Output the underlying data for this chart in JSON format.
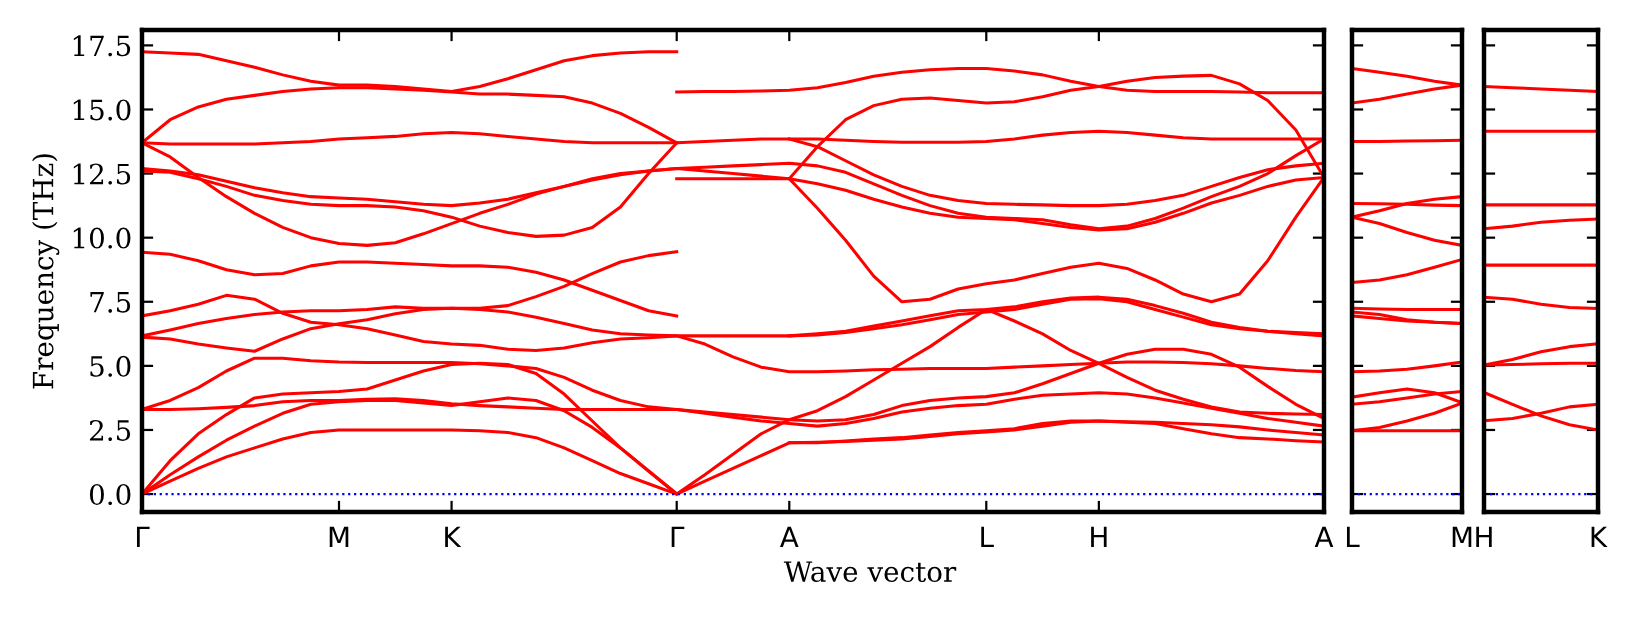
{
  "chart_data": [
    {
      "type": "line",
      "xlabel": "Wave vector",
      "ylabel": "Frequency (THz)",
      "ylim": [
        -0.7,
        18.1
      ],
      "categories": [
        "Γ",
        null,
        null,
        null,
        null,
        null,
        null,
        "M",
        null,
        null,
        null,
        "K",
        null,
        null,
        null,
        null,
        null,
        null,
        null,
        "Γ",
        null,
        null,
        null,
        "A",
        null,
        null,
        null,
        null,
        null,
        null,
        "L",
        null,
        null,
        null,
        "H",
        null,
        null,
        null,
        null,
        null,
        null,
        null,
        "A"
      ],
      "yticks": [
        {
          "value": 0,
          "label": "0.0"
        },
        2.5,
        {
          "value": 5,
          "label": "5.0"
        },
        7.5,
        {
          "value": 10,
          "label": "10.0"
        },
        12.5,
        {
          "value": 15,
          "label": "15.0"
        },
        17.5
      ],
      "ref_lines": [
        {
          "axis": "y",
          "value": 0,
          "color": "#0000ff",
          "line_style": "dotted"
        }
      ],
      "series": [
        {
          "color": "#ff0000",
          "values": [
            17.25,
            17.2,
            17.15,
            16.9,
            16.65,
            16.35,
            16.1,
            15.95,
            15.95,
            15.9,
            15.8,
            15.7,
            15.9,
            16.2,
            16.55,
            16.9,
            17.1,
            17.2,
            17.25,
            17.25,
            null,
            null,
            null,
            null,
            null,
            null,
            null,
            null,
            null,
            null,
            null,
            null,
            null,
            null,
            null,
            null,
            null,
            null,
            null,
            null,
            null,
            null,
            null
          ]
        },
        {
          "color": "#ff0000",
          "values": [
            13.7,
            14.6,
            15.1,
            15.4,
            15.55,
            15.7,
            15.8,
            15.85,
            15.85,
            15.8,
            15.75,
            15.68,
            15.6,
            15.6,
            15.55,
            15.5,
            15.25,
            14.85,
            14.3,
            13.7,
            13.75,
            13.8,
            13.85,
            13.85,
            13.85,
            13.8,
            13.75,
            13.72,
            13.72,
            13.72,
            13.75,
            13.85,
            14.0,
            14.1,
            14.15,
            14.1,
            14.0,
            13.9,
            13.85,
            13.85,
            13.85,
            13.85,
            13.85
          ]
        },
        {
          "color": "#ff0000",
          "values": [
            13.7,
            13.65,
            13.65,
            13.65,
            13.65,
            13.7,
            13.75,
            13.85,
            13.9,
            13.95,
            14.05,
            14.1,
            14.05,
            13.95,
            13.85,
            13.75,
            13.7,
            13.7,
            13.7,
            13.7,
            null,
            null,
            null,
            null,
            null,
            null,
            null,
            null,
            null,
            null,
            null,
            null,
            null,
            null,
            null,
            null,
            null,
            null,
            null,
            null,
            null,
            null,
            null
          ]
        },
        {
          "color": "#ff0000",
          "values": [
            13.7,
            13.15,
            12.35,
            11.6,
            10.95,
            10.4,
            10.0,
            9.77,
            9.7,
            9.8,
            10.15,
            10.55,
            10.95,
            11.3,
            11.7,
            12.0,
            12.3,
            12.5,
            12.6,
            12.7,
            12.6,
            12.5,
            12.4,
            12.3,
            11.15,
            9.9,
            8.5,
            7.5,
            7.6,
            8.0,
            8.2,
            8.35,
            8.6,
            8.85,
            9.0,
            8.8,
            8.35,
            7.8,
            7.5,
            7.8,
            9.1,
            10.8,
            12.35
          ]
        },
        {
          "color": "#ff0000",
          "values": [
            12.7,
            12.6,
            12.45,
            12.2,
            11.95,
            11.75,
            11.6,
            11.55,
            11.5,
            11.4,
            11.3,
            11.25,
            11.35,
            11.5,
            11.75,
            12.0,
            12.25,
            12.45,
            12.6,
            12.7,
            12.75,
            12.8,
            12.85,
            12.9,
            12.8,
            12.55,
            12.1,
            11.65,
            11.25,
            10.95,
            10.8,
            10.75,
            10.7,
            10.5,
            10.35,
            10.45,
            10.75,
            11.15,
            11.6,
            12.0,
            12.5,
            13.2,
            13.85
          ]
        },
        {
          "color": "#ff0000",
          "values": [
            12.6,
            12.55,
            12.3,
            12.0,
            11.65,
            11.45,
            11.3,
            11.25,
            11.25,
            11.2,
            11.05,
            10.8,
            10.45,
            10.2,
            10.05,
            10.1,
            10.4,
            11.2,
            12.5,
            13.7,
            null,
            null,
            null,
            null,
            null,
            null,
            null,
            null,
            null,
            null,
            null,
            null,
            null,
            null,
            null,
            null,
            null,
            null,
            null,
            null,
            null,
            null,
            null
          ]
        },
        {
          "color": "#ff0000",
          "values": [
            9.43,
            9.35,
            9.1,
            8.75,
            8.55,
            8.6,
            8.9,
            9.05,
            9.05,
            9.0,
            8.95,
            8.9,
            8.9,
            8.85,
            8.65,
            8.35,
            7.95,
            7.55,
            7.15,
            6.95,
            null,
            null,
            null,
            null,
            null,
            null,
            null,
            null,
            null,
            null,
            null,
            null,
            null,
            null,
            null,
            null,
            null,
            null,
            null,
            null,
            null,
            null,
            null
          ]
        },
        {
          "color": "#ff0000",
          "values": [
            6.95,
            7.15,
            7.4,
            7.75,
            7.6,
            7.05,
            6.7,
            6.6,
            6.45,
            6.2,
            5.95,
            5.85,
            5.8,
            5.65,
            5.6,
            5.7,
            5.9,
            6.05,
            6.1,
            6.17,
            6.17,
            6.17,
            6.17,
            6.17,
            6.25,
            6.35,
            6.55,
            6.75,
            6.95,
            7.15,
            7.2,
            7.3,
            7.5,
            7.65,
            7.68,
            7.6,
            7.35,
            7.05,
            6.7,
            6.5,
            6.35,
            6.25,
            6.17
          ]
        },
        {
          "color": "#ff0000",
          "values": [
            6.17,
            6.4,
            6.65,
            6.85,
            7.0,
            7.1,
            7.15,
            7.15,
            7.2,
            7.3,
            7.25,
            7.25,
            7.25,
            7.35,
            7.7,
            8.1,
            8.6,
            9.05,
            9.3,
            9.45,
            null,
            null,
            null,
            null,
            null,
            null,
            null,
            null,
            null,
            null,
            null,
            null,
            null,
            null,
            null,
            null,
            null,
            null,
            null,
            null,
            null,
            null,
            null
          ]
        },
        {
          "color": "#ff0000",
          "values": [
            6.12,
            6.05,
            5.85,
            5.7,
            5.57,
            6.05,
            6.45,
            6.64,
            6.8,
            7.03,
            7.2,
            7.25,
            7.2,
            7.1,
            6.9,
            6.65,
            6.4,
            6.25,
            6.2,
            6.17,
            5.85,
            5.35,
            4.95,
            4.77,
            4.77,
            4.8,
            4.85,
            4.87,
            4.9,
            4.9,
            4.9,
            4.95,
            5.0,
            5.05,
            5.1,
            5.15,
            5.15,
            5.13,
            5.08,
            5.0,
            4.9,
            4.82,
            4.77
          ]
        },
        {
          "color": "#ff0000",
          "values": [
            3.3,
            3.65,
            4.15,
            4.8,
            5.3,
            5.3,
            5.2,
            5.15,
            5.13,
            5.13,
            5.13,
            5.13,
            5.08,
            5.0,
            4.9,
            4.55,
            4.05,
            3.65,
            3.4,
            3.3,
            3.2,
            3.1,
            3.0,
            2.9,
            2.85,
            2.9,
            3.1,
            3.45,
            3.65,
            3.75,
            3.8,
            3.95,
            4.3,
            4.7,
            5.1,
            5.45,
            5.65,
            5.65,
            5.45,
            4.95,
            4.2,
            3.5,
            2.95
          ]
        },
        {
          "color": "#ff0000",
          "values": [
            3.3,
            3.3,
            3.33,
            3.38,
            3.45,
            3.6,
            3.65,
            3.65,
            3.7,
            3.72,
            3.65,
            3.52,
            3.45,
            3.4,
            3.35,
            3.3,
            3.3,
            3.3,
            3.3,
            3.3,
            3.15,
            3.0,
            2.85,
            2.75,
            2.65,
            2.75,
            2.95,
            3.2,
            3.35,
            3.45,
            3.5,
            3.7,
            3.85,
            3.9,
            3.95,
            3.9,
            3.75,
            3.55,
            3.35,
            3.15,
            2.95,
            2.8,
            2.65
          ]
        },
        {
          "color": "#ff0000",
          "values": [
            0,
            1.3,
            2.35,
            3.1,
            3.75,
            3.9,
            3.95,
            4.0,
            4.1,
            4.45,
            4.8,
            5.05,
            5.1,
            5.05,
            4.7,
            3.9,
            2.85,
            1.8,
            0.9,
            0,
            0.75,
            1.55,
            2.35,
            2.9,
            3.25,
            3.8,
            4.45,
            5.1,
            5.75,
            6.5,
            7.2,
            6.75,
            6.25,
            5.6,
            5.1,
            4.55,
            4.05,
            3.7,
            3.4,
            3.2,
            3.15,
            3.12,
            3.1
          ]
        },
        {
          "color": "#ff0000",
          "values": [
            0,
            0.75,
            1.45,
            2.1,
            2.65,
            3.15,
            3.5,
            3.6,
            3.65,
            3.65,
            3.55,
            3.45,
            3.6,
            3.75,
            3.65,
            3.25,
            2.6,
            1.8,
            0.9,
            0,
            0.5,
            1.0,
            1.5,
            2.0,
            2.0,
            2.07,
            2.15,
            2.2,
            2.3,
            2.4,
            2.47,
            2.55,
            2.75,
            2.85,
            2.85,
            2.8,
            2.75,
            2.55,
            2.35,
            2.2,
            2.15,
            2.08,
            2.03
          ]
        },
        {
          "color": "#ff0000",
          "values": [
            0,
            0.5,
            1.0,
            1.45,
            1.8,
            2.15,
            2.4,
            2.5,
            2.5,
            2.5,
            2.5,
            2.5,
            2.47,
            2.4,
            2.2,
            1.8,
            1.3,
            0.8,
            0.4,
            0,
            null,
            null,
            null,
            null,
            null,
            null,
            null,
            null,
            null,
            null,
            null,
            null,
            null,
            null,
            null,
            null,
            null,
            null,
            null,
            null,
            null,
            null,
            null
          ]
        },
        {
          "color": "#ff0000",
          "values": [
            null,
            null,
            null,
            null,
            null,
            null,
            null,
            null,
            null,
            null,
            null,
            null,
            null,
            null,
            null,
            null,
            null,
            null,
            null,
            15.68,
            15.7,
            15.7,
            15.72,
            15.75,
            15.85,
            16.05,
            16.3,
            16.45,
            16.55,
            16.6,
            16.6,
            16.5,
            16.35,
            16.1,
            15.9,
            15.75,
            15.7,
            15.7,
            15.7,
            15.68,
            15.65,
            15.65,
            15.65
          ]
        },
        {
          "color": "#ff0000",
          "values": [
            null,
            null,
            null,
            null,
            null,
            null,
            null,
            null,
            null,
            null,
            null,
            null,
            null,
            null,
            null,
            null,
            null,
            null,
            null,
            null,
            null,
            null,
            null,
            12.3,
            13.55,
            14.6,
            15.15,
            15.4,
            15.45,
            15.35,
            15.25,
            15.3,
            15.5,
            15.75,
            15.9,
            16.1,
            16.25,
            16.3,
            16.33,
            16.0,
            15.35,
            14.2,
            12.35
          ]
        },
        {
          "color": "#ff0000",
          "values": [
            null,
            null,
            null,
            null,
            null,
            null,
            null,
            null,
            null,
            null,
            null,
            null,
            null,
            null,
            null,
            null,
            null,
            null,
            null,
            null,
            null,
            null,
            null,
            13.85,
            13.55,
            13.0,
            12.45,
            12.0,
            11.65,
            11.45,
            11.33,
            11.3,
            11.28,
            11.25,
            11.25,
            11.3,
            11.45,
            11.65,
            12.0,
            12.35,
            12.65,
            12.8,
            12.9
          ]
        },
        {
          "color": "#ff0000",
          "values": [
            null,
            null,
            null,
            null,
            null,
            null,
            null,
            null,
            null,
            null,
            null,
            null,
            null,
            null,
            null,
            null,
            null,
            null,
            null,
            12.3,
            12.3,
            12.3,
            12.3,
            12.3,
            12.1,
            11.85,
            11.5,
            11.2,
            10.95,
            10.8,
            10.75,
            10.7,
            10.55,
            10.4,
            10.3,
            10.35,
            10.6,
            10.95,
            11.35,
            11.65,
            12.0,
            12.25,
            12.35
          ]
        },
        {
          "color": "#ff0000",
          "values": [
            null,
            null,
            null,
            null,
            null,
            null,
            null,
            null,
            null,
            null,
            null,
            null,
            null,
            null,
            null,
            null,
            null,
            null,
            null,
            null,
            null,
            null,
            null,
            6.17,
            6.2,
            6.3,
            6.45,
            6.6,
            6.8,
            7.0,
            7.1,
            7.2,
            7.4,
            7.6,
            7.62,
            7.5,
            7.2,
            6.9,
            6.6,
            6.45,
            6.35,
            6.3,
            6.25
          ]
        },
        {
          "color": "#ff0000",
          "values": [
            null,
            null,
            null,
            null,
            null,
            null,
            null,
            null,
            null,
            null,
            null,
            null,
            null,
            null,
            null,
            null,
            null,
            null,
            null,
            null,
            null,
            null,
            null,
            2.0,
            2.02,
            2.05,
            2.1,
            2.15,
            2.25,
            2.35,
            2.42,
            2.5,
            2.65,
            2.8,
            2.85,
            2.82,
            2.8,
            2.75,
            2.7,
            2.62,
            2.5,
            2.4,
            2.3
          ]
        }
      ]
    },
    {
      "type": "line",
      "tick_labels": "x",
      "categories": [
        "L",
        null,
        null,
        null,
        "M"
      ],
      "ylim": [
        -0.7,
        18.1
      ],
      "yticks": [
        0,
        2.5,
        5,
        7.5,
        10,
        12.5,
        15,
        17.5
      ],
      "ref_lines": [
        {
          "axis": "y",
          "value": 0,
          "color": "#0000ff",
          "line_style": "dotted"
        }
      ],
      "series": [
        {
          "color": "#ff0000",
          "values": [
            16.6,
            16.45,
            16.3,
            16.1,
            15.95
          ]
        },
        {
          "color": "#ff0000",
          "values": [
            15.25,
            15.4,
            15.6,
            15.8,
            15.95
          ]
        },
        {
          "color": "#ff0000",
          "values": [
            13.75,
            13.75,
            13.77,
            13.78,
            13.8
          ]
        },
        {
          "color": "#ff0000",
          "values": [
            11.33,
            11.32,
            11.3,
            11.27,
            11.25
          ]
        },
        {
          "color": "#ff0000",
          "values": [
            10.8,
            11.05,
            11.33,
            11.5,
            11.6
          ]
        },
        {
          "color": "#ff0000",
          "values": [
            10.8,
            10.55,
            10.2,
            9.9,
            9.7
          ]
        },
        {
          "color": "#ff0000",
          "values": [
            8.25,
            8.35,
            8.55,
            8.85,
            9.15
          ]
        },
        {
          "color": "#ff0000",
          "values": [
            7.25,
            7.22,
            7.2,
            7.2,
            7.2
          ]
        },
        {
          "color": "#ff0000",
          "values": [
            7.1,
            7.0,
            6.8,
            6.7,
            6.65
          ]
        },
        {
          "color": "#ff0000",
          "values": [
            6.95,
            6.85,
            6.75,
            6.7,
            6.65
          ]
        },
        {
          "color": "#ff0000",
          "values": [
            4.77,
            4.8,
            4.87,
            5.0,
            5.15
          ]
        },
        {
          "color": "#ff0000",
          "values": [
            3.78,
            3.95,
            4.1,
            3.95,
            3.57
          ]
        },
        {
          "color": "#ff0000",
          "values": [
            3.5,
            3.6,
            3.75,
            3.9,
            4.0
          ]
        },
        {
          "color": "#ff0000",
          "values": [
            2.47,
            2.47,
            2.47,
            2.47,
            2.47
          ]
        },
        {
          "color": "#ff0000",
          "values": [
            2.47,
            2.6,
            2.85,
            3.15,
            3.55
          ]
        }
      ]
    },
    {
      "type": "line",
      "tick_labels": "x",
      "categories": [
        "H",
        null,
        null,
        null,
        "K"
      ],
      "ylim": [
        -0.7,
        18.1
      ],
      "yticks": [
        0,
        2.5,
        5,
        7.5,
        10,
        12.5,
        15,
        17.5
      ],
      "ref_lines": [
        {
          "axis": "y",
          "value": 0,
          "color": "#0000ff",
          "line_style": "dotted"
        }
      ],
      "series": [
        {
          "color": "#ff0000",
          "values": [
            15.9,
            15.85,
            15.8,
            15.75,
            15.7
          ]
        },
        {
          "color": "#ff0000",
          "values": [
            14.15,
            14.15,
            14.15,
            14.15,
            14.15
          ]
        },
        {
          "color": "#ff0000",
          "values": [
            11.28,
            11.28,
            11.28,
            11.28,
            11.28
          ]
        },
        {
          "color": "#ff0000",
          "values": [
            10.35,
            10.45,
            10.6,
            10.68,
            10.73
          ]
        },
        {
          "color": "#ff0000",
          "values": [
            8.93,
            8.93,
            8.93,
            8.93,
            8.93
          ]
        },
        {
          "color": "#ff0000",
          "values": [
            7.68,
            7.6,
            7.4,
            7.28,
            7.24
          ]
        },
        {
          "color": "#ff0000",
          "values": [
            5.03,
            5.25,
            5.55,
            5.75,
            5.86
          ]
        },
        {
          "color": "#ff0000",
          "values": [
            5.03,
            5.05,
            5.08,
            5.1,
            5.1
          ]
        },
        {
          "color": "#ff0000",
          "values": [
            3.96,
            3.5,
            3.05,
            2.7,
            2.5
          ]
        },
        {
          "color": "#ff0000",
          "values": [
            2.86,
            2.95,
            3.15,
            3.4,
            3.5
          ]
        }
      ]
    }
  ]
}
